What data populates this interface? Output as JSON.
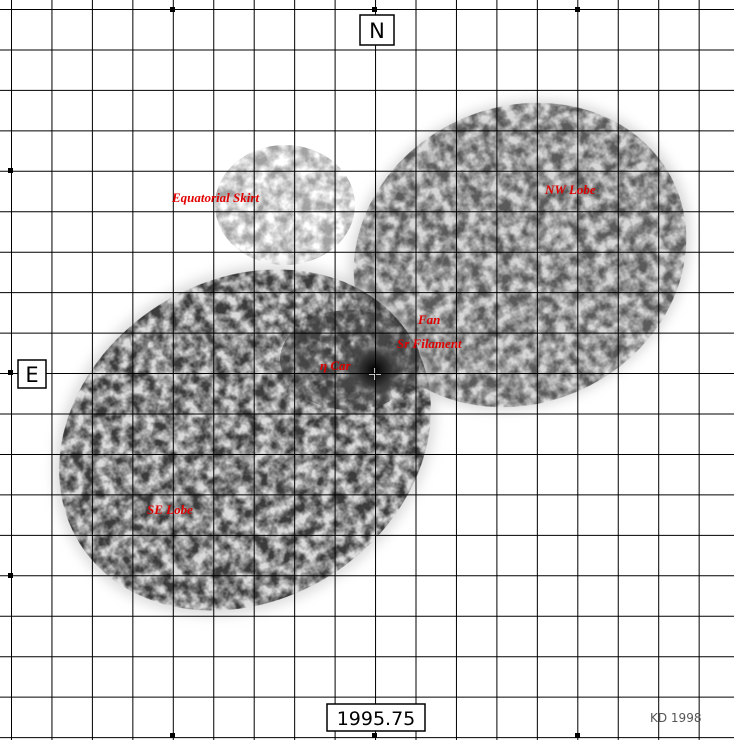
{
  "compass": {
    "north": "N",
    "east": "E"
  },
  "epoch": "1995.75",
  "credit": "KD 1998",
  "features": {
    "equatorial_skirt": "Equatorial Skirt",
    "nw_lobe": "NW Lobe",
    "fan": "Fan",
    "sr_filament": "Sr Filament",
    "star": "η Car",
    "se_lobe": "SE Lobe"
  }
}
